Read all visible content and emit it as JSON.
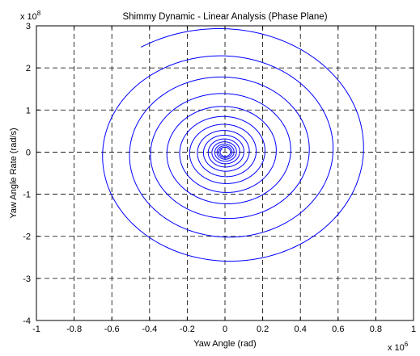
{
  "chart_data": {
    "type": "line",
    "title": "Shimmy Dynamic - Linear Analysis (Phase Plane)",
    "xlabel": "Yaw Angle (rad)",
    "ylabel": "Yaw Angle Rate (rad/s)",
    "x_scale_label": {
      "base": "x 10",
      "exponent": "6"
    },
    "y_scale_label": {
      "base": "x 10",
      "exponent": "8"
    },
    "xlim": [
      -1,
      1
    ],
    "ylim": [
      -4,
      3
    ],
    "xticks": [
      "-1",
      "-0.8",
      "-0.6",
      "-0.4",
      "-0.2",
      "0",
      "0.2",
      "0.4",
      "0.6",
      "0.8",
      "1"
    ],
    "yticks": [
      "-4",
      "-3",
      "-2",
      "-1",
      "0",
      "1",
      "2",
      "3"
    ],
    "grid": true,
    "line_color": "#0000ff",
    "series": [
      {
        "start": [
          -0.5,
          2.8
        ],
        "spiral": {
          "center": [
            0.0,
            0.0
          ],
          "x_amplitude_start": 0.8,
          "y_amplitude_start": 3.0,
          "turns": 14,
          "decay_per_turn": 0.78,
          "direction": "clockwise"
        }
      }
    ]
  }
}
